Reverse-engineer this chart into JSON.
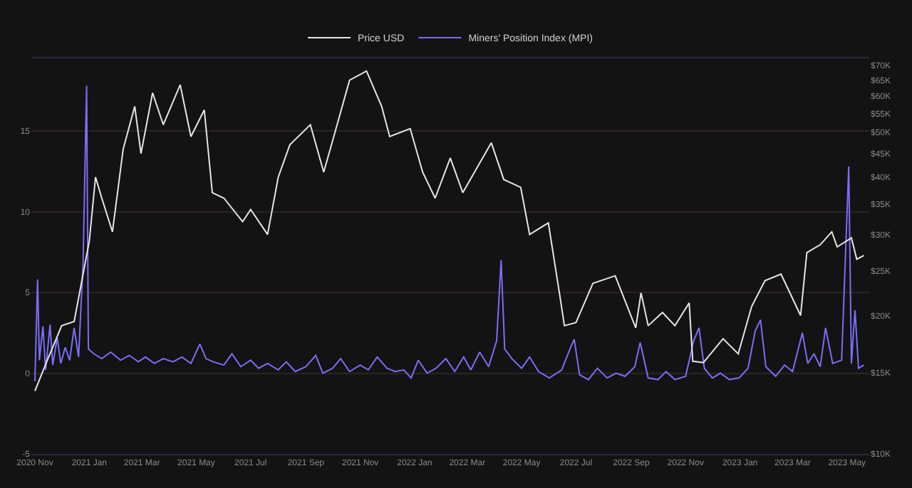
{
  "chart_data": {
    "type": "line",
    "legend": "top",
    "grid": "y",
    "log": "y2",
    "marker": "none",
    "line_style": "solid",
    "xlim": [
      "2020-10-28",
      "2023-05-26"
    ],
    "xticks": [
      {
        "value": "2020-11-01",
        "label": "2020 Nov"
      },
      {
        "value": "2021-01-01",
        "label": "2021 Jan"
      },
      {
        "value": "2021-03-01",
        "label": "2021 Mar"
      },
      {
        "value": "2021-05-01",
        "label": "2021 May"
      },
      {
        "value": "2021-07-01",
        "label": "2021 Jul"
      },
      {
        "value": "2021-09-01",
        "label": "2021 Sep"
      },
      {
        "value": "2021-11-01",
        "label": "2021 Nov"
      },
      {
        "value": "2022-01-01",
        "label": "2022 Jan"
      },
      {
        "value": "2022-03-01",
        "label": "2022 Mar"
      },
      {
        "value": "2022-05-01",
        "label": "2022 May"
      },
      {
        "value": "2022-07-01",
        "label": "2022 Jul"
      },
      {
        "value": "2022-09-01",
        "label": "2022 Sep"
      },
      {
        "value": "2022-11-01",
        "label": "2022 Nov"
      },
      {
        "value": "2023-01-01",
        "label": "2023 Jan"
      },
      {
        "value": "2023-03-01",
        "label": "2023 Mar"
      },
      {
        "value": "2023-05-01",
        "label": "2023 May"
      }
    ],
    "ylim": [
      -5,
      19.5
    ],
    "yticks": [
      -5,
      0,
      5,
      10,
      15
    ],
    "y2lim": [
      10000,
      72500
    ],
    "y2ticks": [
      {
        "value": 10000,
        "label": "$10K"
      },
      {
        "value": 15000,
        "label": "$15K"
      },
      {
        "value": 20000,
        "label": "$20K"
      },
      {
        "value": 25000,
        "label": "$25K"
      },
      {
        "value": 30000,
        "label": "$30K"
      },
      {
        "value": 35000,
        "label": "$35K"
      },
      {
        "value": 40000,
        "label": "$40K"
      },
      {
        "value": 45000,
        "label": "$45K"
      },
      {
        "value": 50000,
        "label": "$50K"
      },
      {
        "value": 55000,
        "label": "$55K"
      },
      {
        "value": 60000,
        "label": "$60K"
      },
      {
        "value": 65000,
        "label": "$65K"
      },
      {
        "value": 70000,
        "label": "$70K"
      }
    ],
    "series": [
      {
        "name": "Price USD",
        "color": "#e6e6e6",
        "axis": "y2",
        "x": [
          "2020-11-01",
          "2020-11-15",
          "2020-12-01",
          "2020-12-15",
          "2021-01-01",
          "2021-01-08",
          "2021-01-15",
          "2021-01-27",
          "2021-02-08",
          "2021-02-21",
          "2021-02-28",
          "2021-03-13",
          "2021-03-25",
          "2021-04-13",
          "2021-04-25",
          "2021-05-10",
          "2021-05-19",
          "2021-06-01",
          "2021-06-22",
          "2021-07-01",
          "2021-07-20",
          "2021-08-01",
          "2021-08-14",
          "2021-09-06",
          "2021-09-21",
          "2021-10-01",
          "2021-10-20",
          "2021-11-08",
          "2021-11-25",
          "2021-12-04",
          "2021-12-27",
          "2022-01-10",
          "2022-01-24",
          "2022-02-10",
          "2022-02-24",
          "2022-03-28",
          "2022-04-11",
          "2022-04-30",
          "2022-05-10",
          "2022-05-31",
          "2022-06-13",
          "2022-06-18",
          "2022-07-01",
          "2022-07-20",
          "2022-08-14",
          "2022-09-06",
          "2022-09-12",
          "2022-09-20",
          "2022-10-06",
          "2022-10-20",
          "2022-11-05",
          "2022-11-09",
          "2022-11-21",
          "2022-12-13",
          "2022-12-30",
          "2023-01-14",
          "2023-01-29",
          "2023-02-16",
          "2023-03-10",
          "2023-03-17",
          "2023-04-01",
          "2023-04-14",
          "2023-04-20",
          "2023-05-06",
          "2023-05-12",
          "2023-05-20"
        ],
        "values": [
          13700,
          16000,
          19000,
          19400,
          29000,
          40000,
          36000,
          30400,
          46000,
          57000,
          45000,
          61000,
          52000,
          63500,
          49000,
          56000,
          37000,
          36000,
          32000,
          34000,
          30000,
          40000,
          47000,
          52000,
          41000,
          48000,
          65000,
          68000,
          57000,
          49000,
          51000,
          41000,
          36000,
          44000,
          37000,
          47500,
          39500,
          38000,
          30000,
          31800,
          22000,
          19000,
          19300,
          23500,
          24400,
          18800,
          22400,
          19000,
          20300,
          19000,
          21300,
          15900,
          15800,
          17800,
          16500,
          20900,
          23800,
          24600,
          20000,
          27400,
          28500,
          30400,
          28200,
          29500,
          26500,
          27000
        ]
      },
      {
        "name": "Miners' Position Index (MPI)",
        "color": "#7b6ef6",
        "axis": "y",
        "x": [
          "2020-11-01",
          "2020-11-04",
          "2020-11-06",
          "2020-11-10",
          "2020-11-13",
          "2020-11-18",
          "2020-11-21",
          "2020-11-26",
          "2020-11-30",
          "2020-12-05",
          "2020-12-10",
          "2020-12-15",
          "2020-12-20",
          "2020-12-25",
          "2020-12-29",
          "2020-12-31",
          "2021-01-06",
          "2021-01-15",
          "2021-01-25",
          "2021-02-05",
          "2021-02-15",
          "2021-02-25",
          "2021-03-05",
          "2021-03-15",
          "2021-03-25",
          "2021-04-05",
          "2021-04-15",
          "2021-04-25",
          "2021-05-05",
          "2021-05-12",
          "2021-05-20",
          "2021-06-01",
          "2021-06-10",
          "2021-06-20",
          "2021-07-01",
          "2021-07-10",
          "2021-07-20",
          "2021-08-01",
          "2021-08-10",
          "2021-08-20",
          "2021-09-01",
          "2021-09-12",
          "2021-09-20",
          "2021-10-01",
          "2021-10-10",
          "2021-10-20",
          "2021-11-01",
          "2021-11-10",
          "2021-11-20",
          "2021-12-01",
          "2021-12-10",
          "2021-12-20",
          "2021-12-28",
          "2022-01-05",
          "2022-01-15",
          "2022-01-25",
          "2022-02-05",
          "2022-02-15",
          "2022-02-25",
          "2022-03-05",
          "2022-03-15",
          "2022-03-25",
          "2022-04-03",
          "2022-04-08",
          "2022-04-12",
          "2022-04-20",
          "2022-05-01",
          "2022-05-10",
          "2022-05-20",
          "2022-06-01",
          "2022-06-15",
          "2022-06-25",
          "2022-06-29",
          "2022-07-05",
          "2022-07-15",
          "2022-07-25",
          "2022-08-05",
          "2022-08-15",
          "2022-08-25",
          "2022-09-05",
          "2022-09-11",
          "2022-09-20",
          "2022-10-01",
          "2022-10-10",
          "2022-10-20",
          "2022-11-01",
          "2022-11-10",
          "2022-11-16",
          "2022-11-22",
          "2022-12-01",
          "2022-12-10",
          "2022-12-20",
          "2022-12-31",
          "2023-01-10",
          "2023-01-18",
          "2023-01-24",
          "2023-01-30",
          "2023-02-10",
          "2023-02-20",
          "2023-03-01",
          "2023-03-12",
          "2023-03-18",
          "2023-03-25",
          "2023-04-01",
          "2023-04-07",
          "2023-04-15",
          "2023-04-25",
          "2023-05-03",
          "2023-05-06",
          "2023-05-10",
          "2023-05-14",
          "2023-05-20"
        ],
        "values": [
          -0.5,
          5.8,
          0.8,
          2.9,
          0.2,
          3.0,
          0.5,
          2.2,
          0.6,
          1.6,
          0.8,
          2.8,
          1.0,
          6.8,
          17.8,
          1.5,
          1.2,
          0.9,
          1.3,
          0.8,
          1.1,
          0.7,
          1.0,
          0.6,
          0.9,
          0.7,
          1.0,
          0.6,
          1.8,
          0.9,
          0.7,
          0.5,
          1.2,
          0.4,
          0.8,
          0.3,
          0.6,
          0.2,
          0.7,
          0.1,
          0.4,
          1.1,
          0.0,
          0.3,
          0.9,
          0.1,
          0.5,
          0.2,
          1.0,
          0.3,
          0.1,
          0.2,
          -0.3,
          0.8,
          0.0,
          0.3,
          0.9,
          0.1,
          1.0,
          0.2,
          1.3,
          0.4,
          2.0,
          7.0,
          1.5,
          0.9,
          0.3,
          1.0,
          0.1,
          -0.3,
          0.2,
          1.6,
          2.1,
          -0.1,
          -0.4,
          0.3,
          -0.3,
          0.0,
          -0.2,
          0.4,
          1.9,
          -0.3,
          -0.4,
          0.1,
          -0.4,
          -0.2,
          2.0,
          2.8,
          0.3,
          -0.3,
          0.0,
          -0.4,
          -0.3,
          0.3,
          2.6,
          3.3,
          0.4,
          -0.2,
          0.5,
          0.1,
          2.5,
          0.6,
          1.2,
          0.4,
          2.8,
          0.6,
          0.8,
          12.8,
          0.6,
          3.9,
          0.3,
          0.5
        ]
      }
    ]
  }
}
